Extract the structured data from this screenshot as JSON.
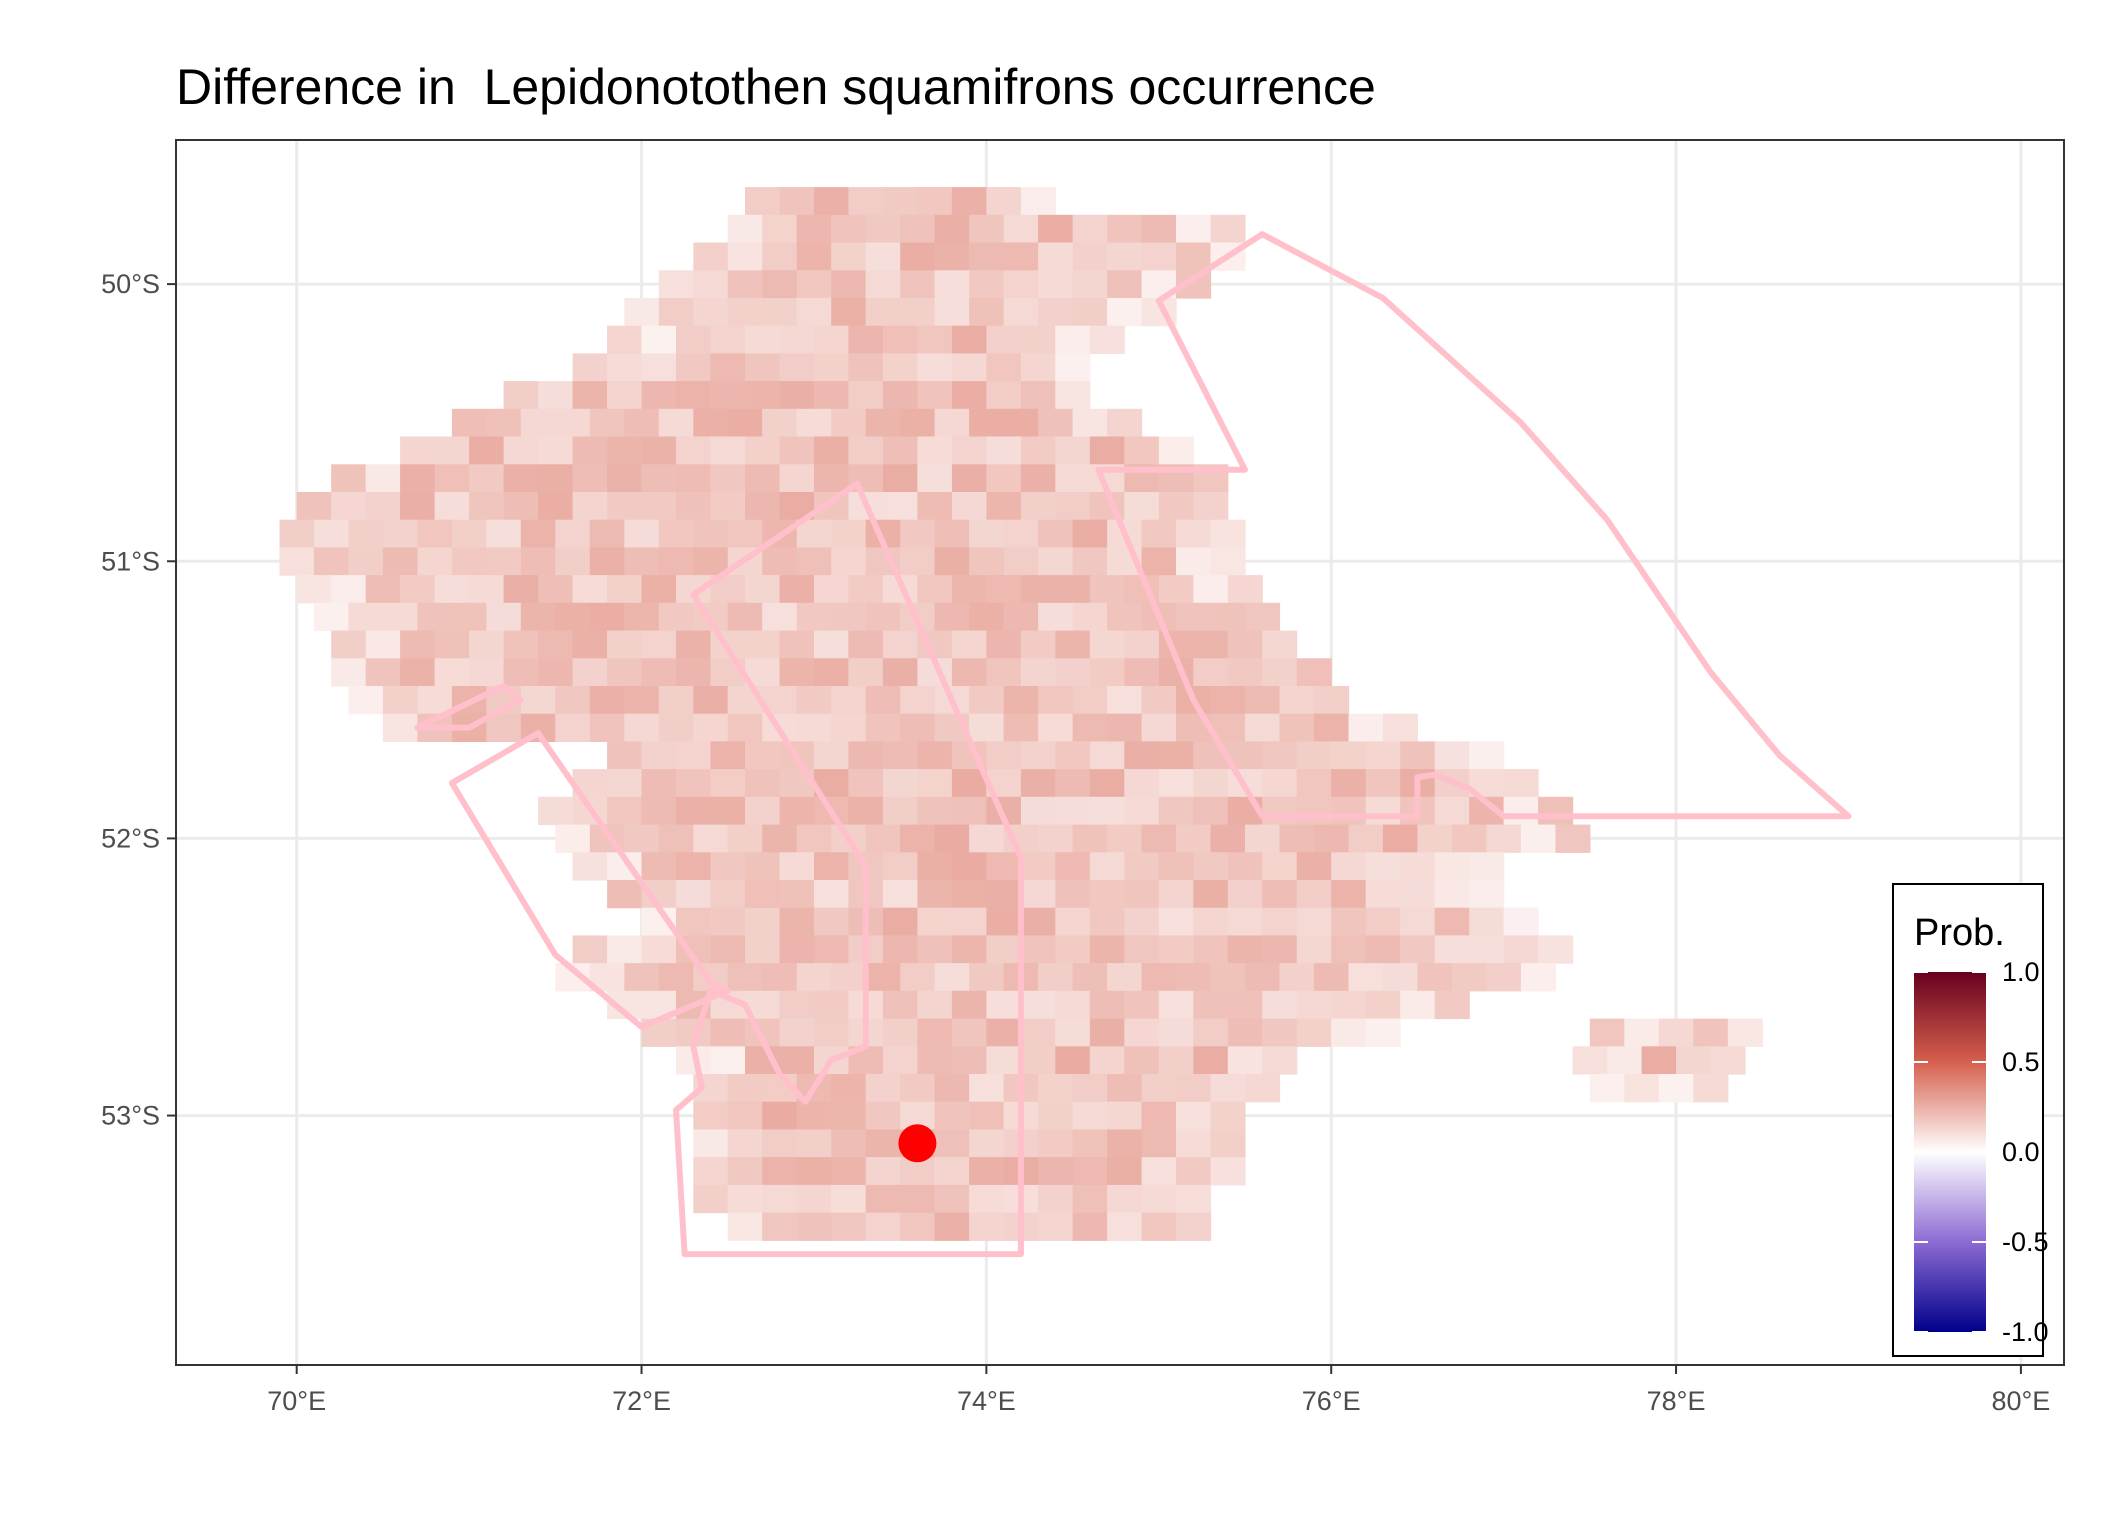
{
  "title": "Difference in  Lepidonotothen squamifrons occurrence",
  "map": {
    "x_range": [
      69.3,
      80.25
    ],
    "y_range": [
      -53.9,
      -49.48
    ],
    "x_ticks": [
      {
        "value": 70,
        "label": "70°E"
      },
      {
        "value": 72,
        "label": "72°E"
      },
      {
        "value": 74,
        "label": "74°E"
      },
      {
        "value": 76,
        "label": "76°E"
      },
      {
        "value": 78,
        "label": "78°E"
      },
      {
        "value": 80,
        "label": "80°E"
      }
    ],
    "y_ticks": [
      {
        "value": -50,
        "label": "50°S"
      },
      {
        "value": -51,
        "label": "51°S"
      },
      {
        "value": -52,
        "label": "52°S"
      },
      {
        "value": -53,
        "label": "53°S"
      }
    ],
    "grid": true,
    "boundary_color": "#ffc0cb",
    "point": {
      "lon": 73.6,
      "lat": -53.1,
      "color": "#ff0000"
    },
    "raster": {
      "cell_lon": 0.2,
      "cell_lat": 0.1,
      "typical_value": 0.18,
      "spans": [
        {
          "lat": -49.7,
          "lon_start": 72.6,
          "lon_end": 74.4
        },
        {
          "lat": -49.8,
          "lon_start": 72.5,
          "lon_end": 75.4
        },
        {
          "lat": -49.9,
          "lon_start": 72.3,
          "lon_end": 75.4
        },
        {
          "lat": -50.0,
          "lon_start": 72.1,
          "lon_end": 75.2
        },
        {
          "lat": -50.1,
          "lon_start": 71.9,
          "lon_end": 75.0
        },
        {
          "lat": -50.2,
          "lon_start": 71.8,
          "lon_end": 74.8
        },
        {
          "lat": -50.3,
          "lon_start": 71.6,
          "lon_end": 74.6
        },
        {
          "lat": -50.4,
          "lon_start": 71.2,
          "lon_end": 74.6
        },
        {
          "lat": -50.5,
          "lon_start": 70.9,
          "lon_end": 74.8
        },
        {
          "lat": -50.6,
          "lon_start": 70.6,
          "lon_end": 75.1
        },
        {
          "lat": -50.7,
          "lon_start": 70.2,
          "lon_end": 75.3
        },
        {
          "lat": -50.8,
          "lon_start": 70.0,
          "lon_end": 75.4
        },
        {
          "lat": -50.9,
          "lon_start": 69.9,
          "lon_end": 75.4
        },
        {
          "lat": -51.0,
          "lon_start": 69.9,
          "lon_end": 75.4
        },
        {
          "lat": -51.1,
          "lon_start": 70.0,
          "lon_end": 75.5
        },
        {
          "lat": -51.2,
          "lon_start": 70.1,
          "lon_end": 75.7
        },
        {
          "lat": -51.3,
          "lon_start": 70.2,
          "lon_end": 75.8
        },
        {
          "lat": -51.4,
          "lon_start": 70.2,
          "lon_end": 76.0
        },
        {
          "lat": -51.5,
          "lon_start": 70.3,
          "lon_end": 76.1
        },
        {
          "lat": -51.6,
          "lon_start": 70.5,
          "lon_end": 76.5
        },
        {
          "lat": -51.7,
          "lon_start": 71.8,
          "lon_end": 76.9
        },
        {
          "lat": -51.8,
          "lon_start": 71.6,
          "lon_end": 77.2
        },
        {
          "lat": -51.9,
          "lon_start": 71.4,
          "lon_end": 77.4
        },
        {
          "lat": -52.0,
          "lon_start": 71.5,
          "lon_end": 77.5
        },
        {
          "lat": -52.1,
          "lon_start": 71.6,
          "lon_end": 77.0
        },
        {
          "lat": -52.2,
          "lon_start": 71.8,
          "lon_end": 77.0
        },
        {
          "lat": -52.3,
          "lon_start": 72.0,
          "lon_end": 77.2
        },
        {
          "lat": -52.4,
          "lon_start": 71.6,
          "lon_end": 77.3
        },
        {
          "lat": -52.5,
          "lon_start": 71.5,
          "lon_end": 77.2
        },
        {
          "lat": -52.6,
          "lon_start": 71.8,
          "lon_end": 76.8
        },
        {
          "lat": -52.7,
          "lon_start": 72.0,
          "lon_end": 76.4
        },
        {
          "lat": -52.8,
          "lon_start": 72.2,
          "lon_end": 75.8
        },
        {
          "lat": -52.9,
          "lon_start": 72.3,
          "lon_end": 75.6
        },
        {
          "lat": -53.0,
          "lon_start": 72.3,
          "lon_end": 75.5
        },
        {
          "lat": -53.1,
          "lon_start": 72.3,
          "lon_end": 75.4
        },
        {
          "lat": -53.2,
          "lon_start": 72.3,
          "lon_end": 75.4
        },
        {
          "lat": -53.3,
          "lon_start": 72.3,
          "lon_end": 75.3
        },
        {
          "lat": -53.4,
          "lon_start": 72.5,
          "lon_end": 75.2
        }
      ],
      "extra_spans": [
        {
          "lat": -52.7,
          "lon_start": 77.5,
          "lon_end": 78.4
        },
        {
          "lat": -52.8,
          "lon_start": 77.4,
          "lon_end": 78.3
        },
        {
          "lat": -52.9,
          "lon_start": 77.5,
          "lon_end": 78.2
        }
      ]
    },
    "polygons": [
      {
        "name": "west-spit-area",
        "points": [
          [
            70.7,
            -51.6
          ],
          [
            71.0,
            -51.6
          ],
          [
            71.3,
            -51.5
          ],
          [
            71.2,
            -51.45
          ],
          [
            70.7,
            -51.6
          ]
        ]
      },
      {
        "name": "west-channel-area",
        "points": [
          [
            70.9,
            -51.8
          ],
          [
            71.4,
            -51.62
          ],
          [
            72.4,
            -52.52
          ],
          [
            72.5,
            -52.55
          ],
          [
            72.0,
            -52.68
          ],
          [
            71.5,
            -52.42
          ],
          [
            70.9,
            -51.8
          ]
        ]
      },
      {
        "name": "central-area",
        "points": [
          [
            72.3,
            -51.12
          ],
          [
            73.25,
            -50.72
          ],
          [
            74.2,
            -52.07
          ],
          [
            74.2,
            -53.5
          ],
          [
            72.25,
            -53.5
          ],
          [
            72.2,
            -52.98
          ],
          [
            72.35,
            -52.9
          ],
          [
            72.3,
            -52.75
          ],
          [
            72.4,
            -52.55
          ],
          [
            72.6,
            -52.6
          ],
          [
            72.8,
            -52.85
          ],
          [
            72.95,
            -52.95
          ],
          [
            73.1,
            -52.8
          ],
          [
            73.3,
            -52.75
          ],
          [
            73.3,
            -52.1
          ],
          [
            72.3,
            -51.12
          ]
        ]
      },
      {
        "name": "east-shelf-area",
        "points": [
          [
            74.65,
            -50.67
          ],
          [
            75.5,
            -50.67
          ],
          [
            75.0,
            -50.06
          ],
          [
            75.6,
            -49.82
          ],
          [
            76.3,
            -50.05
          ],
          [
            77.1,
            -50.5
          ],
          [
            77.6,
            -50.85
          ],
          [
            78.2,
            -51.4
          ],
          [
            78.6,
            -51.7
          ],
          [
            79.0,
            -51.92
          ],
          [
            77.0,
            -51.92
          ],
          [
            76.8,
            -51.82
          ],
          [
            76.6,
            -51.77
          ],
          [
            76.5,
            -51.78
          ],
          [
            76.5,
            -51.92
          ],
          [
            75.6,
            -51.92
          ],
          [
            75.2,
            -51.5
          ],
          [
            74.65,
            -50.67
          ]
        ]
      }
    ]
  },
  "legend": {
    "title": "Prob.",
    "labels": [
      "1.0",
      "0.5",
      "0.0",
      "-0.5",
      "-1.0"
    ],
    "values": [
      1.0,
      0.5,
      0.0,
      -0.5,
      -1.0
    ],
    "colors": {
      "high": "#67001f",
      "mid_high": "#d6604d",
      "mid": "#ffffff",
      "mid_low": "#8c6bd3",
      "low": "#00008b"
    }
  }
}
